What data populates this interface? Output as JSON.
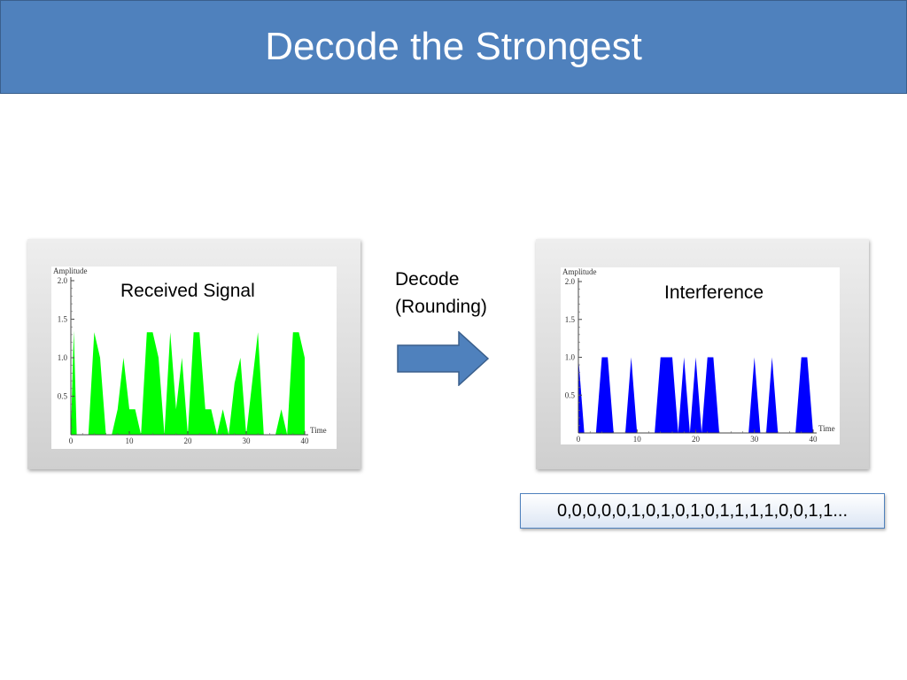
{
  "slide": {
    "title": "Decode the Strongest",
    "arrow_label_line1": "Decode",
    "arrow_label_line2": "(Rounding)",
    "decoded_bits": "0,0,0,0,0,1,0,1,0,1,0,1,1,1,1,0,0,1,1...",
    "arrow_color": "#4f81bd",
    "title_bar_color": "#4f81bd"
  },
  "chart_data": [
    {
      "type": "area",
      "title": "Received Signal",
      "ylabel": "Amplitude",
      "xlabel": "Time",
      "xlim": [
        0,
        40
      ],
      "ylim": [
        0,
        2.0
      ],
      "x_ticks": [
        "0",
        "10",
        "20",
        "30",
        "40"
      ],
      "y_ticks": [
        "0.5",
        "1.0",
        "1.5",
        "2.0"
      ],
      "color": "#00ff00",
      "x": [
        0,
        0.5,
        1,
        1.5,
        3,
        4,
        5,
        6,
        7,
        8,
        9,
        10,
        11,
        12,
        13,
        14,
        15,
        16,
        17,
        18,
        19,
        20,
        21,
        22,
        23,
        24,
        25,
        26,
        27,
        28,
        29,
        30,
        31,
        32,
        33,
        34,
        35,
        36,
        37,
        38,
        39,
        40
      ],
      "values": [
        0,
        1.35,
        0,
        0,
        0,
        1.33,
        1.0,
        0,
        0,
        0.33,
        1.0,
        0.33,
        0.33,
        0,
        1.33,
        1.33,
        1.0,
        0,
        1.33,
        0.33,
        1.0,
        0,
        1.33,
        1.33,
        0.33,
        0.33,
        0,
        0.33,
        0,
        0.67,
        1.0,
        0,
        0.67,
        1.33,
        0,
        0,
        0,
        0.33,
        0,
        1.33,
        1.33,
        1.0
      ]
    },
    {
      "type": "area",
      "title": "Interference",
      "ylabel": "Amplitude",
      "xlabel": "Time",
      "xlim": [
        0,
        40
      ],
      "ylim": [
        0,
        2.0
      ],
      "x_ticks": [
        "0",
        "10",
        "20",
        "30",
        "40"
      ],
      "y_ticks": [
        "0.5",
        "1.0",
        "1.5",
        "2.0"
      ],
      "color": "#0000ff",
      "x": [
        0,
        1,
        2,
        3,
        4,
        5,
        6,
        7,
        8,
        9,
        10,
        11,
        12,
        13,
        14,
        15,
        16,
        17,
        18,
        19,
        20,
        21,
        22,
        23,
        24,
        25,
        26,
        27,
        28,
        29,
        30,
        31,
        32,
        33,
        34,
        35,
        36,
        37,
        38,
        39,
        40
      ],
      "values": [
        1,
        0,
        0,
        0,
        1,
        1,
        0,
        0,
        0,
        1,
        0,
        0,
        0,
        0,
        1,
        1,
        1,
        0,
        1,
        0,
        1,
        0,
        1,
        1,
        0,
        0,
        0,
        0,
        0,
        0,
        1,
        0,
        0,
        1,
        0,
        0,
        0,
        0,
        1,
        1,
        0
      ]
    }
  ]
}
